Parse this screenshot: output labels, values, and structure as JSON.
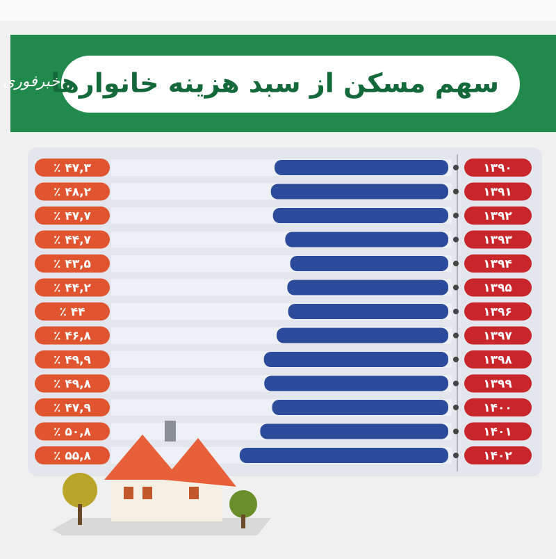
{
  "chart_data": {
    "type": "bar",
    "orientation": "horizontal",
    "title": "سهم مسکن از سبد هزینه خانوارها",
    "brand": "خبرفوری",
    "categories": [
      "۱۳۹۰",
      "۱۳۹۱",
      "۱۳۹۲",
      "۱۳۹۳",
      "۱۳۹۴",
      "۱۳۹۵",
      "۱۳۹۶",
      "۱۳۹۷",
      "۱۳۹۸",
      "۱۳۹۹",
      "۱۴۰۰",
      "۱۴۰۱",
      "۱۴۰۲"
    ],
    "values": [
      47.3,
      48.2,
      47.7,
      44.7,
      43.5,
      44.2,
      44,
      46.8,
      49.9,
      49.8,
      47.9,
      50.8,
      55.8
    ],
    "value_labels": [
      "٪ ۴۷,۳",
      "٪ ۴۸,۲",
      "٪ ۴۷,۷",
      "٪ ۴۴,۷",
      "٪ ۴۳,۵",
      "٪ ۴۴,۲",
      "٪ ۴۴",
      "٪ ۴۶,۸",
      "٪ ۴۹,۹",
      "٪ ۴۹,۸",
      "٪ ۴۷,۹",
      "٪ ۵۰,۸",
      "٪ ۵۵,۸"
    ],
    "color": "#2d4b9b",
    "category_color": "#c8262b",
    "label_color": "#e05430",
    "xlim": [
      5,
      60
    ]
  }
}
